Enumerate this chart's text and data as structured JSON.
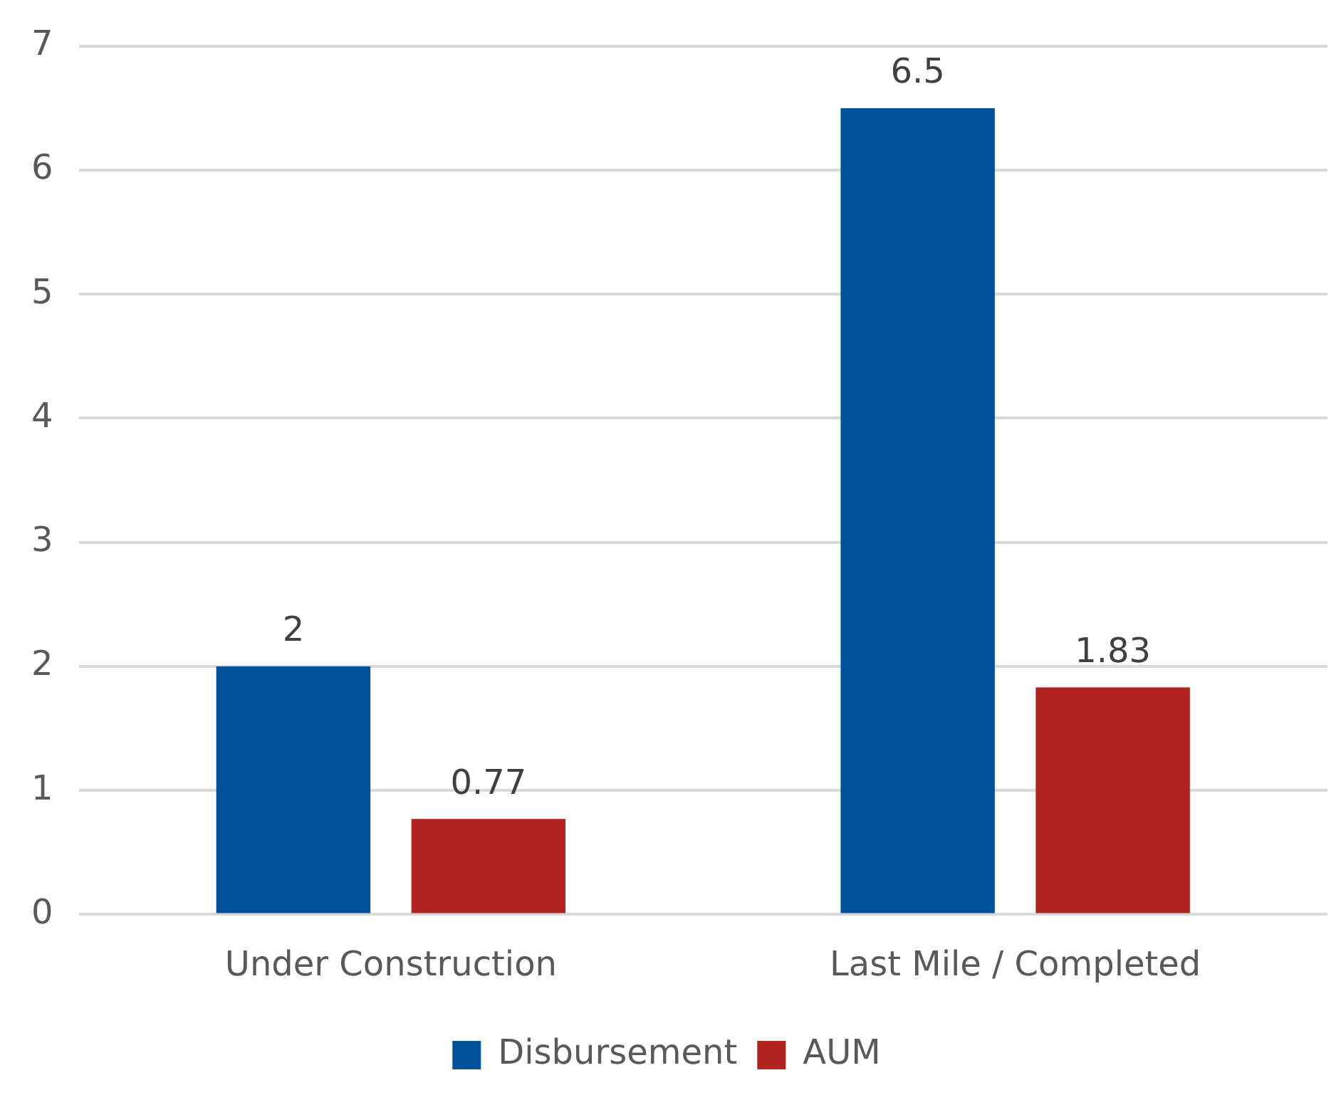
{
  "chart_data": {
    "type": "bar",
    "categories": [
      "Under Construction",
      "Last Mile / Completed"
    ],
    "series": [
      {
        "name": "Disbursement",
        "color": "#02519b",
        "values": [
          2,
          6.5
        ]
      },
      {
        "name": "AUM",
        "color": "#b0231e",
        "values": [
          0.77,
          1.83
        ]
      }
    ],
    "ylim": [
      0,
      7
    ],
    "yticks": [
      0,
      1,
      2,
      3,
      4,
      5,
      6,
      7
    ],
    "grid": "y",
    "legend": "bottom",
    "data_labels": true
  }
}
